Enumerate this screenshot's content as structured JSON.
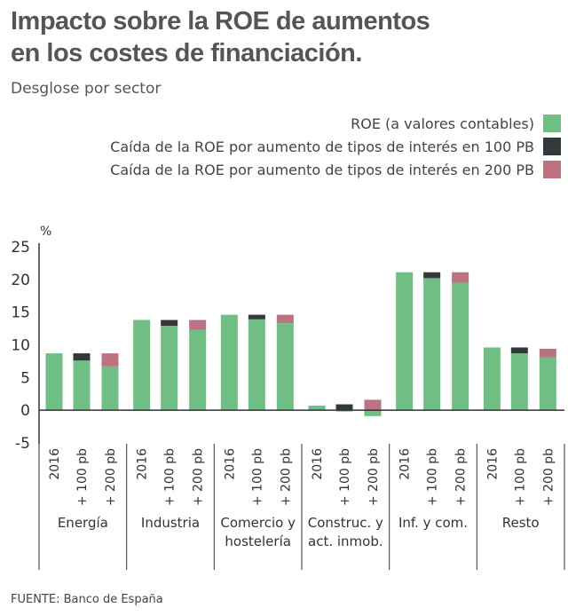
{
  "title_line1": "Impacto sobre la ROE de aumentos",
  "title_line2": "en los costes de financiación.",
  "subtitle": "Desglose por sector",
  "source": "FUENTE: Banco de España",
  "colors": {
    "roe": "#6fbf84",
    "drop100": "#33393a",
    "drop200": "#bd7281"
  },
  "chart_data": {
    "type": "bar",
    "stacked": true,
    "ylabel": "%",
    "ylim": [
      -5,
      25
    ],
    "yticks": [
      -5,
      0,
      5,
      10,
      15,
      20,
      25
    ],
    "legend": [
      "ROE (a valores contables)",
      "Caída de la ROE por aumento de tipos de interés en 100 PB",
      "Caída de la ROE por aumento de tipos de interés en 200 PB"
    ],
    "groups": [
      {
        "name": [
          "Energía"
        ],
        "bars": [
          {
            "label": "2016",
            "roe": 8.7,
            "drop100": 0,
            "drop200": 0
          },
          {
            "label": "+ 100 pb",
            "roe": 7.6,
            "drop100": 1.1,
            "drop200": 0
          },
          {
            "label": "+ 200 pb",
            "roe": 6.7,
            "drop100": 0,
            "drop200": 2.0
          }
        ]
      },
      {
        "name": [
          "Industria"
        ],
        "bars": [
          {
            "label": "2016",
            "roe": 13.8,
            "drop100": 0,
            "drop200": 0
          },
          {
            "label": "+ 100 pb",
            "roe": 12.9,
            "drop100": 0.9,
            "drop200": 0
          },
          {
            "label": "+ 200 pb",
            "roe": 12.3,
            "drop100": 0,
            "drop200": 1.5
          }
        ]
      },
      {
        "name": [
          "Comercio y",
          "hostelería"
        ],
        "bars": [
          {
            "label": "2016",
            "roe": 14.6,
            "drop100": 0,
            "drop200": 0
          },
          {
            "label": "+ 100 pb",
            "roe": 13.9,
            "drop100": 0.7,
            "drop200": 0
          },
          {
            "label": "+ 200 pb",
            "roe": 13.3,
            "drop100": 0,
            "drop200": 1.3
          }
        ]
      },
      {
        "name": [
          "Construc. y",
          "act. inmob."
        ],
        "bars": [
          {
            "label": "2016",
            "roe": 0.7,
            "drop100": 0,
            "drop200": 0
          },
          {
            "label": "+ 100 pb",
            "roe": -0.2,
            "drop100": 0.9,
            "drop200": 0
          },
          {
            "label": "+ 200 pb",
            "roe": -0.9,
            "drop100": 0,
            "drop200": 1.6
          }
        ]
      },
      {
        "name": [
          "Inf. y com."
        ],
        "bars": [
          {
            "label": "2016",
            "roe": 21.1,
            "drop100": 0,
            "drop200": 0
          },
          {
            "label": "+ 100 pb",
            "roe": 20.2,
            "drop100": 0.9,
            "drop200": 0
          },
          {
            "label": "+ 200 pb",
            "roe": 19.5,
            "drop100": 0,
            "drop200": 1.6
          }
        ]
      },
      {
        "name": [
          "Resto"
        ],
        "bars": [
          {
            "label": "2016",
            "roe": 9.6,
            "drop100": 0,
            "drop200": 0
          },
          {
            "label": "+ 100 pb",
            "roe": 8.7,
            "drop100": 0.9,
            "drop200": 0
          },
          {
            "label": "+ 200 pb",
            "roe": 8.1,
            "drop100": 0,
            "drop200": 1.3
          }
        ]
      }
    ]
  }
}
